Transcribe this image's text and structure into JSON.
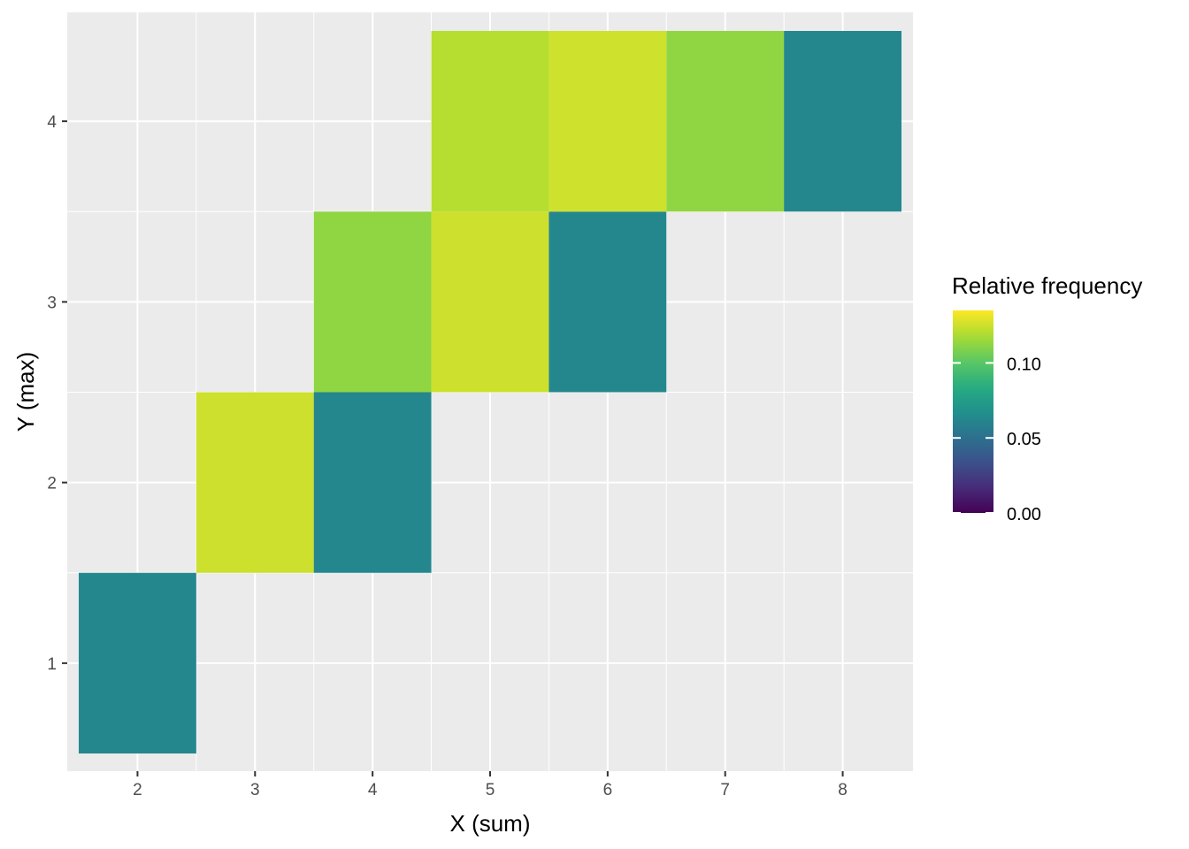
{
  "chart_data": {
    "type": "heatmap",
    "title": "",
    "xlabel": "X (sum)",
    "ylabel": "Y (max)",
    "x_ticks": [
      2,
      3,
      4,
      5,
      6,
      7,
      8
    ],
    "y_ticks": [
      1,
      2,
      3,
      4
    ],
    "xlim": [
      1.5,
      8.5
    ],
    "ylim": [
      0.5,
      4.5
    ],
    "grid": true,
    "cells": [
      {
        "x": 2,
        "y": 1,
        "value": 0.0625
      },
      {
        "x": 3,
        "y": 2,
        "value": 0.125
      },
      {
        "x": 4,
        "y": 2,
        "value": 0.0625
      },
      {
        "x": 4,
        "y": 3,
        "value": 0.1125
      },
      {
        "x": 5,
        "y": 3,
        "value": 0.125
      },
      {
        "x": 6,
        "y": 3,
        "value": 0.0625
      },
      {
        "x": 5,
        "y": 4,
        "value": 0.1205
      },
      {
        "x": 6,
        "y": 4,
        "value": 0.1255
      },
      {
        "x": 7,
        "y": 4,
        "value": 0.1125
      },
      {
        "x": 8,
        "y": 4,
        "value": 0.0625
      }
    ],
    "legend": {
      "title": "Relative frequency",
      "position": "right",
      "min": 0.0,
      "max": 0.135,
      "breaks": [
        {
          "value": 0.0,
          "label": "0.00"
        },
        {
          "value": 0.05,
          "label": "0.05"
        },
        {
          "value": 0.1,
          "label": "0.10"
        }
      ],
      "colormap": "viridis"
    },
    "colors": {
      "panel_bg": "#EBEBEB",
      "grid": "#FFFFFF"
    }
  }
}
